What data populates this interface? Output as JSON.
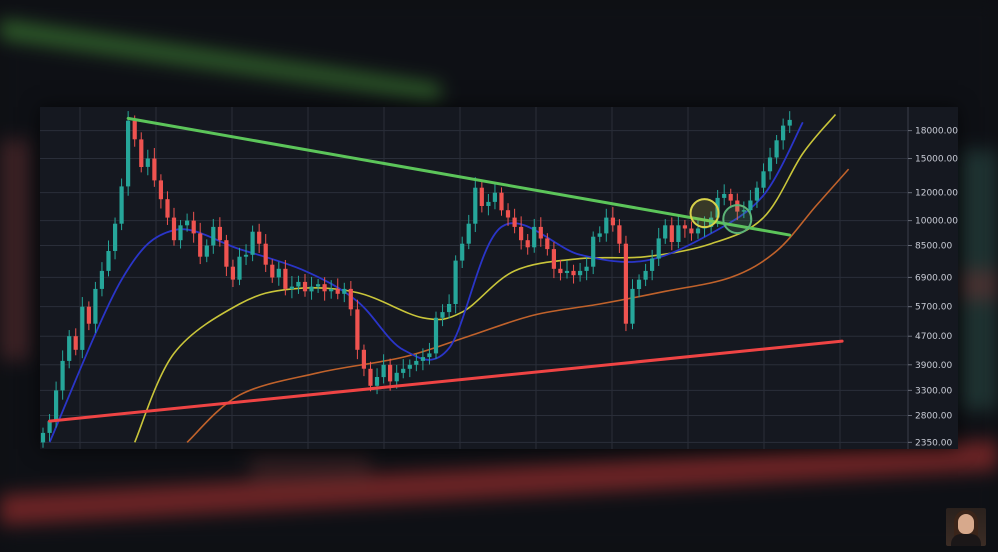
{
  "colors": {
    "background": "#0e0f13",
    "panel": "#151820",
    "grid": "#2a2e39",
    "up_candle": "#26a69a",
    "down_candle": "#ef5350",
    "descending_trendline": "#5cc55a",
    "ascending_trendline": "#ef4444",
    "ma_blue": "#2a35c8",
    "ma_yellow": "#c9c53a",
    "ma_orange": "#c0622b",
    "circle_yellow": "#d8d24a",
    "circle_green": "#5cb377"
  },
  "chart_data": {
    "type": "candlestick",
    "scale": "log",
    "ylim": [
      2250,
      21000
    ],
    "y_ticks": [
      {
        "value": 18000,
        "label": "18000.00"
      },
      {
        "value": 15000,
        "label": "15000.00"
      },
      {
        "value": 12000,
        "label": "12000.00"
      },
      {
        "value": 10000,
        "label": "10000.00"
      },
      {
        "value": 8500,
        "label": "8500.00"
      },
      {
        "value": 6900,
        "label": "6900.00"
      },
      {
        "value": 5700,
        "label": "5700.00"
      },
      {
        "value": 4700,
        "label": "4700.00"
      },
      {
        "value": 3900,
        "label": "3900.00"
      },
      {
        "value": 3300,
        "label": "3300.00"
      },
      {
        "value": 2800,
        "label": "2800.00"
      },
      {
        "value": 2350,
        "label": "2350.00"
      }
    ],
    "close_series": [
      2500,
      2700,
      3300,
      4000,
      4700,
      4300,
      5700,
      5100,
      6400,
      7200,
      8200,
      9800,
      12500,
      19200,
      17000,
      14200,
      15000,
      13000,
      11500,
      10200,
      8800,
      9700,
      10000,
      9200,
      7900,
      8500,
      9600,
      8800,
      7400,
      6800,
      7900,
      8000,
      9300,
      8600,
      7500,
      6900,
      7300,
      6400,
      6500,
      6700,
      6300,
      6500,
      6600,
      6300,
      6400,
      6200,
      6400,
      5600,
      4300,
      3800,
      3400,
      3600,
      3900,
      3500,
      3700,
      3800,
      3900,
      4000,
      4100,
      4200,
      5300,
      5500,
      5800,
      7700,
      8600,
      9800,
      12400,
      11000,
      11300,
      12000,
      10700,
      10200,
      9600,
      8800,
      8400,
      9600,
      8900,
      8300,
      7300,
      7100,
      7200,
      7000,
      7200,
      7400,
      9000,
      9200,
      10200,
      9700,
      8600,
      5100,
      6400,
      6800,
      7200,
      7800,
      8900,
      9700,
      8700,
      9700,
      9500,
      9200,
      9500,
      9600,
      10200,
      11600,
      11900,
      11400,
      10600,
      10700,
      11400,
      12400,
      13800,
      15100,
      16900,
      18600,
      19300
    ],
    "ma_blue": [
      {
        "i": 1,
        "v": 2350
      },
      {
        "i": 12,
        "v": 6800
      },
      {
        "i": 20,
        "v": 9400
      },
      {
        "i": 30,
        "v": 8300
      },
      {
        "i": 40,
        "v": 7200
      },
      {
        "i": 48,
        "v": 5900
      },
      {
        "i": 55,
        "v": 4300
      },
      {
        "i": 62,
        "v": 4350
      },
      {
        "i": 70,
        "v": 9600
      },
      {
        "i": 82,
        "v": 8000
      },
      {
        "i": 92,
        "v": 7700
      },
      {
        "i": 102,
        "v": 9200
      },
      {
        "i": 110,
        "v": 11800
      },
      {
        "i": 116,
        "v": 19000
      }
    ],
    "ma_yellow": [
      {
        "i": 14,
        "v": 2350
      },
      {
        "i": 20,
        "v": 4200
      },
      {
        "i": 30,
        "v": 5800
      },
      {
        "i": 38,
        "v": 6400
      },
      {
        "i": 48,
        "v": 6250
      },
      {
        "i": 58,
        "v": 5300
      },
      {
        "i": 64,
        "v": 5500
      },
      {
        "i": 72,
        "v": 7200
      },
      {
        "i": 82,
        "v": 7800
      },
      {
        "i": 92,
        "v": 7900
      },
      {
        "i": 102,
        "v": 8600
      },
      {
        "i": 110,
        "v": 10200
      },
      {
        "i": 116,
        "v": 15500
      },
      {
        "i": 121,
        "v": 20000
      }
    ],
    "ma_orange": [
      {
        "i": 22,
        "v": 2350
      },
      {
        "i": 30,
        "v": 3200
      },
      {
        "i": 42,
        "v": 3700
      },
      {
        "i": 55,
        "v": 4100
      },
      {
        "i": 65,
        "v": 4700
      },
      {
        "i": 75,
        "v": 5400
      },
      {
        "i": 85,
        "v": 5800
      },
      {
        "i": 95,
        "v": 6300
      },
      {
        "i": 105,
        "v": 6900
      },
      {
        "i": 112,
        "v": 8200
      },
      {
        "i": 118,
        "v": 11000
      },
      {
        "i": 123,
        "v": 14000
      }
    ],
    "descending_trendline": [
      {
        "i": 13,
        "v": 19500
      },
      {
        "i": 114,
        "v": 9100
      }
    ],
    "ascending_trendline": [
      {
        "i": 1,
        "v": 2700
      },
      {
        "i": 122,
        "v": 4550
      }
    ],
    "circles": [
      {
        "i": 101,
        "v": 10500,
        "color": "yellow"
      },
      {
        "i": 106,
        "v": 10100,
        "color": "green"
      }
    ]
  }
}
